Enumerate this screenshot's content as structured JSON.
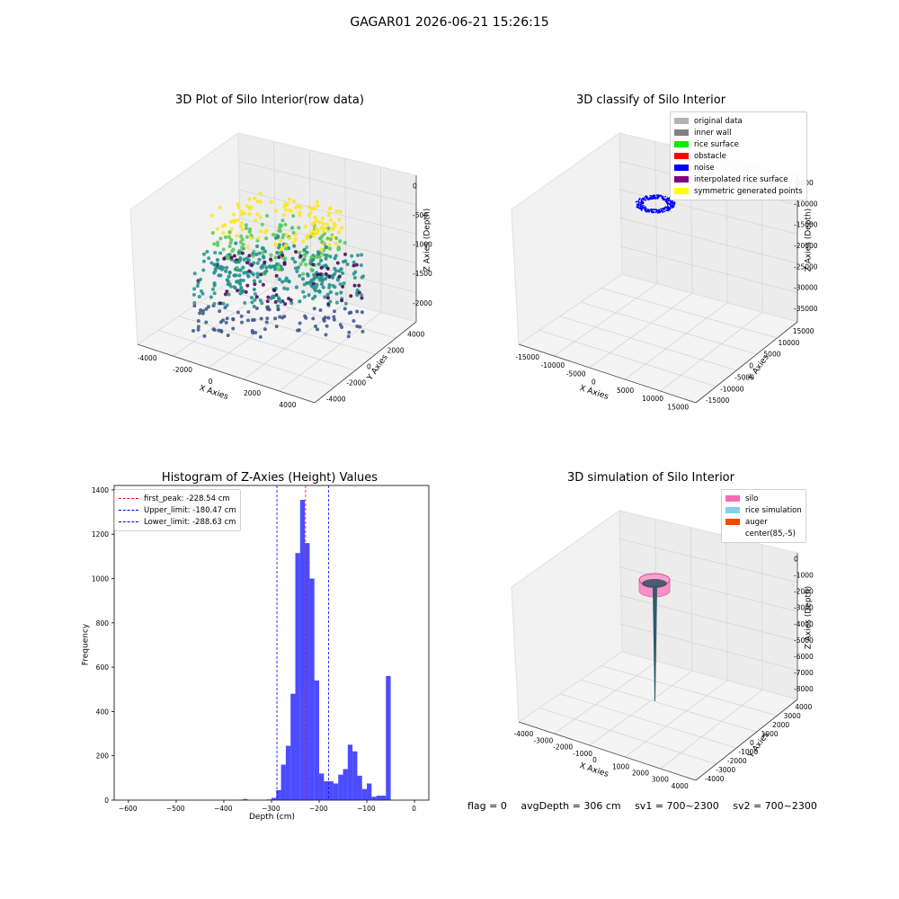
{
  "suptitle": "GAGAR01 2026-06-21 15:26:15",
  "footer": {
    "flag": "flag = 0",
    "avgdepth": "avgDepth = 306 cm",
    "sv1": "sv1 = 700~2300",
    "sv2": "sv2 = 700~2300"
  },
  "chart_data": [
    {
      "type": "scatter",
      "title": "3D Plot of Silo Interior(row data)",
      "xlabel": "X Axies",
      "ylabel": "Y Axies",
      "zlabel": "Z Axies (Depth)",
      "xticks": [
        "-4000",
        "-2000",
        "0",
        "2000",
        "4000"
      ],
      "yticks": [
        "-4000",
        "-2000",
        "0",
        "2000",
        "4000"
      ],
      "zticks": [
        "0",
        "-500",
        "-1000",
        "-1500",
        "-2000"
      ],
      "colormap": [
        "#440154",
        "#3b528b",
        "#21918c",
        "#5ec962",
        "#fde725"
      ]
    },
    {
      "type": "scatter",
      "title": "3D classify of Silo Interior",
      "zlabel": "Z Axies (Depth)",
      "xlabel": "X Axies",
      "ylabel": "Y Axies",
      "xticks": [
        "-15000",
        "-10000",
        "-5000",
        "0",
        "5000",
        "10000",
        "15000"
      ],
      "yticks": [
        "-15000",
        "-10000",
        "-5000",
        "0",
        "5000",
        "10000",
        "15000"
      ],
      "zticks": [
        "-5000",
        "-10000",
        "-15000",
        "-20000",
        "-25000",
        "-30000",
        "-35000"
      ],
      "legend": [
        {
          "label": "original data",
          "color": "#b3b3b3"
        },
        {
          "label": "inner wall",
          "color": "#808080"
        },
        {
          "label": "rice surface",
          "color": "#00ee00"
        },
        {
          "label": "obstacle",
          "color": "#ff0000"
        },
        {
          "label": "noise",
          "color": "#0000ff"
        },
        {
          "label": "interpolated rice surface",
          "color": "#800080"
        },
        {
          "label": "symmetric generated points",
          "color": "#ffff00"
        }
      ]
    },
    {
      "type": "bar",
      "title": "Histogram of Z-Axies (Height) Values",
      "xlabel": "Depth (cm)",
      "ylabel": "Frequency",
      "xlim": [
        -630,
        30
      ],
      "ylim": [
        0,
        1420
      ],
      "xticks": [
        -600,
        -500,
        -400,
        -300,
        -200,
        -100,
        0
      ],
      "yticks": [
        0,
        200,
        400,
        600,
        800,
        1000,
        1200,
        1400
      ],
      "bar_color": "#0000ff",
      "bin_width": 10,
      "bins": [
        {
          "x": -370,
          "value": 1
        },
        {
          "x": -360,
          "value": 5
        },
        {
          "x": -310,
          "value": 3
        },
        {
          "x": -300,
          "value": 10
        },
        {
          "x": -290,
          "value": 45
        },
        {
          "x": -280,
          "value": 160
        },
        {
          "x": -270,
          "value": 245
        },
        {
          "x": -260,
          "value": 480
        },
        {
          "x": -250,
          "value": 1115
        },
        {
          "x": -240,
          "value": 1355
        },
        {
          "x": -230,
          "value": 1160
        },
        {
          "x": -220,
          "value": 1000
        },
        {
          "x": -210,
          "value": 540
        },
        {
          "x": -200,
          "value": 120
        },
        {
          "x": -190,
          "value": 85
        },
        {
          "x": -180,
          "value": 85
        },
        {
          "x": -170,
          "value": 75
        },
        {
          "x": -160,
          "value": 115
        },
        {
          "x": -150,
          "value": 140
        },
        {
          "x": -140,
          "value": 250
        },
        {
          "x": -130,
          "value": 220
        },
        {
          "x": -120,
          "value": 110
        },
        {
          "x": -110,
          "value": 50
        },
        {
          "x": -100,
          "value": 75
        },
        {
          "x": -90,
          "value": 15
        },
        {
          "x": -80,
          "value": 20
        },
        {
          "x": -70,
          "value": 20
        },
        {
          "x": -60,
          "value": 560
        }
      ],
      "lines": [
        {
          "label": "first_peak: -228.54 cm",
          "value": -228.54,
          "color": "#ff0000"
        },
        {
          "label": "Upper_limit: -180.47 cm",
          "value": -180.47,
          "color": "#0000ff"
        },
        {
          "label": "Lower_limit: -288.63 cm",
          "value": -288.63,
          "color": "#0000ff"
        }
      ]
    },
    {
      "type": "area",
      "title": "3D simulation of Silo Interior",
      "xlabel": "X Axies",
      "ylabel": "Y Axies",
      "zlabel": "Z Axies (Depth)",
      "xticks": [
        "-4000",
        "-3000",
        "-2000",
        "-1000",
        "0",
        "1000",
        "2000",
        "3000",
        "4000"
      ],
      "yticks": [
        "-4000",
        "-3000",
        "-2000",
        "-1000",
        "0",
        "1000",
        "2000",
        "3000",
        "4000"
      ],
      "zticks": [
        "0",
        "-1000",
        "-2000",
        "-3000",
        "-4000",
        "-5000",
        "-6000",
        "-7000",
        "-8000"
      ],
      "legend": [
        {
          "label": "silo",
          "color": "#ff69b4"
        },
        {
          "label": "rice simulation",
          "color": "#87ceeb"
        },
        {
          "label": "auger",
          "color": "#ff4500"
        },
        {
          "label": "center(85,-5)",
          "color": ""
        }
      ]
    }
  ]
}
